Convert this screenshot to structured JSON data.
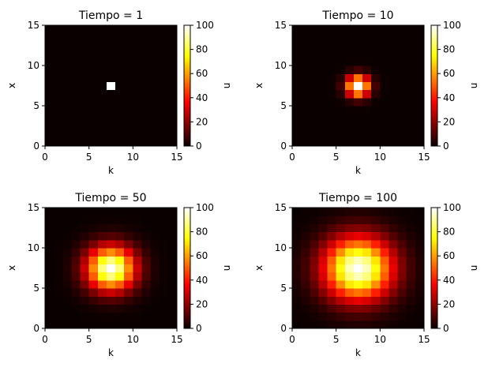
{
  "chart_data": [
    {
      "type": "heatmap",
      "title": "Tiempo = 1",
      "xlabel": "k",
      "ylabel": "x",
      "colorbar_label": "u",
      "colormap": "hot",
      "xlim": [
        0,
        15
      ],
      "ylim": [
        0,
        15
      ],
      "clim": [
        0,
        100
      ],
      "grid_size": 15,
      "diffusion_sigma": 0.15,
      "peak_value": 100,
      "xticks": [
        "0",
        "5",
        "10",
        "15"
      ],
      "yticks": [
        "0",
        "5",
        "10",
        "15"
      ],
      "cbar_ticks": [
        "0",
        "20",
        "40",
        "60",
        "80",
        "100"
      ],
      "grid": false
    },
    {
      "type": "heatmap",
      "title": "Tiempo = 10",
      "xlabel": "k",
      "ylabel": "x",
      "colorbar_label": "u",
      "colormap": "hot",
      "xlim": [
        0,
        15
      ],
      "ylim": [
        0,
        15
      ],
      "clim": [
        0,
        100
      ],
      "grid_size": 15,
      "diffusion_sigma": 0.9,
      "peak_value": 100,
      "xticks": [
        "0",
        "5",
        "10",
        "15"
      ],
      "yticks": [
        "0",
        "5",
        "10",
        "15"
      ],
      "cbar_ticks": [
        "0",
        "20",
        "40",
        "60",
        "80",
        "100"
      ],
      "grid": false
    },
    {
      "type": "heatmap",
      "title": "Tiempo = 50",
      "xlabel": "k",
      "ylabel": "x",
      "colorbar_label": "u",
      "colormap": "hot",
      "xlim": [
        0,
        15
      ],
      "ylim": [
        0,
        15
      ],
      "clim": [
        0,
        100
      ],
      "grid_size": 15,
      "diffusion_sigma": 1.9,
      "peak_value": 100,
      "xticks": [
        "0",
        "5",
        "10",
        "15"
      ],
      "yticks": [
        "0",
        "5",
        "10",
        "15"
      ],
      "cbar_ticks": [
        "0",
        "20",
        "40",
        "60",
        "80",
        "100"
      ],
      "grid": false
    },
    {
      "type": "heatmap",
      "title": "Tiempo = 100",
      "xlabel": "k",
      "ylabel": "x",
      "colorbar_label": "u",
      "colormap": "hot",
      "xlim": [
        0,
        15
      ],
      "ylim": [
        0,
        15
      ],
      "clim": [
        0,
        100
      ],
      "grid_size": 15,
      "diffusion_sigma": 2.7,
      "peak_value": 100,
      "xticks": [
        "0",
        "5",
        "10",
        "15"
      ],
      "yticks": [
        "0",
        "5",
        "10",
        "15"
      ],
      "cbar_ticks": [
        "0",
        "20",
        "40",
        "60",
        "80",
        "100"
      ],
      "grid": false
    }
  ]
}
